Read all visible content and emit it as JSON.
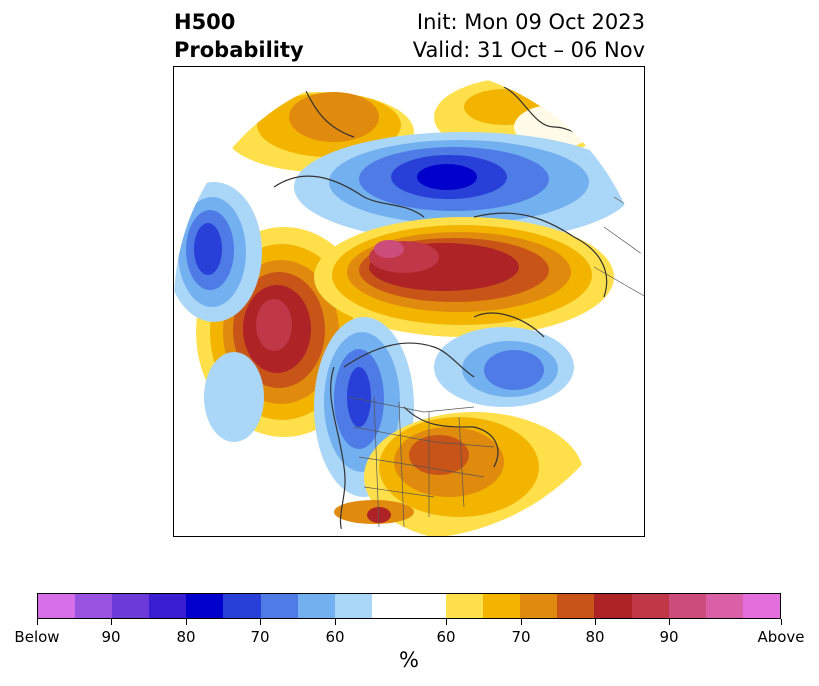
{
  "header": {
    "variable": "H500",
    "product": "Probability",
    "init": "Init: Mon 09 Oct 2023",
    "valid": "Valid: 31 Oct – 06 Nov"
  },
  "colorbar": {
    "below_colors": [
      "#d56ee7",
      "#9a52e0",
      "#6b3ad8",
      "#3a1ed2",
      "#0000cc",
      "#2940d8",
      "#4f7be6",
      "#73b0f0",
      "#aad6f8"
    ],
    "neutral_color": "#ffffff",
    "above_colors": [
      "#ffe04a",
      "#f3b400",
      "#e08a0e",
      "#c85418",
      "#ae2326",
      "#c03848",
      "#cc4c7a",
      "#d95fa6",
      "#e46edc"
    ],
    "tick_labels": [
      "Below",
      "90",
      "80",
      "70",
      "60",
      "60",
      "70",
      "80",
      "90",
      "Above"
    ],
    "units_label": "%"
  }
}
